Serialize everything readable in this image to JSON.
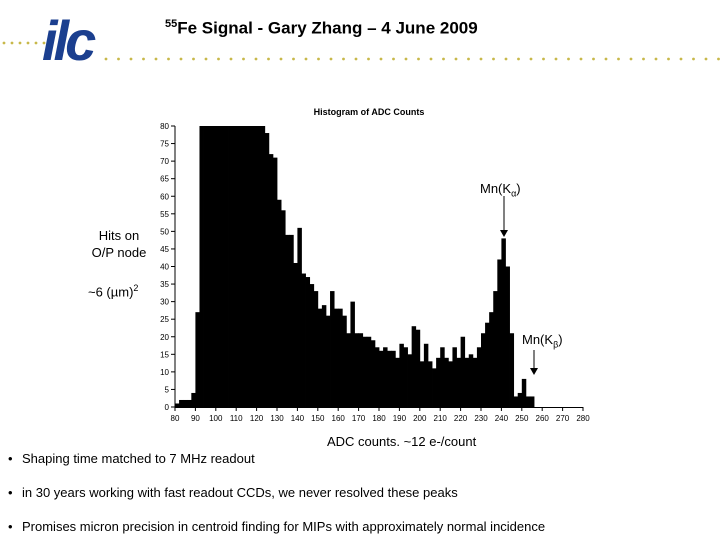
{
  "logo": {
    "text": "ilc",
    "color": "#1b3f8f",
    "dot_color": "#c8b84a"
  },
  "slide": {
    "title_sup": "55",
    "title_main": "Fe Signal - Gary Zhang – 4 June 2009"
  },
  "annotations": {
    "hits_line1": "Hits on",
    "hits_line2": "O/P node",
    "pixel_area": "~6 (µm)",
    "pixel_area_sup": "2",
    "mn_ka_prefix": "Mn(K",
    "mn_ka_sub": "α",
    "mn_ka_suffix": ")",
    "mn_kb_prefix": "Mn(K",
    "mn_kb_sub": "β",
    "mn_kb_suffix": ")",
    "xlabel": "ADC counts. ~12 e-/count"
  },
  "bullets": [
    {
      "marker": "•",
      "text": "Shaping time matched to 7 MHz readout"
    },
    {
      "marker": "•",
      "text": "in 30 years working with fast readout CCDs, we never resolved these peaks"
    },
    {
      "marker": "•",
      "text": "Promises micron precision in centroid finding for MIPs with approximately normal incidence"
    }
  ],
  "chart_data": {
    "type": "bar",
    "title": "Histogram of ADC Counts",
    "xlabel": "ADC counts. ~12 e-/count",
    "ylabel": "",
    "bin_width": 2,
    "xlim": [
      80,
      280
    ],
    "ylim": [
      0,
      80
    ],
    "xticks": [
      80,
      90,
      100,
      110,
      120,
      130,
      140,
      150,
      160,
      170,
      180,
      190,
      200,
      210,
      220,
      230,
      240,
      250,
      260,
      270,
      280
    ],
    "yticks": [
      0,
      5,
      10,
      15,
      20,
      25,
      30,
      35,
      40,
      45,
      50,
      55,
      60,
      65,
      70,
      75,
      80
    ],
    "bar_color": "#000000",
    "bins": [
      {
        "x": 80,
        "y": 1
      },
      {
        "x": 82,
        "y": 2
      },
      {
        "x": 84,
        "y": 2
      },
      {
        "x": 86,
        "y": 2
      },
      {
        "x": 88,
        "y": 4
      },
      {
        "x": 90,
        "y": 27
      },
      {
        "x": 92,
        "y": 80
      },
      {
        "x": 94,
        "y": 80
      },
      {
        "x": 96,
        "y": 80
      },
      {
        "x": 98,
        "y": 80
      },
      {
        "x": 100,
        "y": 80
      },
      {
        "x": 102,
        "y": 80
      },
      {
        "x": 104,
        "y": 80
      },
      {
        "x": 106,
        "y": 80
      },
      {
        "x": 108,
        "y": 80
      },
      {
        "x": 110,
        "y": 80
      },
      {
        "x": 112,
        "y": 80
      },
      {
        "x": 114,
        "y": 80
      },
      {
        "x": 116,
        "y": 80
      },
      {
        "x": 118,
        "y": 80
      },
      {
        "x": 120,
        "y": 80
      },
      {
        "x": 122,
        "y": 80
      },
      {
        "x": 124,
        "y": 78
      },
      {
        "x": 126,
        "y": 72
      },
      {
        "x": 128,
        "y": 71
      },
      {
        "x": 130,
        "y": 59
      },
      {
        "x": 132,
        "y": 56
      },
      {
        "x": 134,
        "y": 49
      },
      {
        "x": 136,
        "y": 49
      },
      {
        "x": 138,
        "y": 41
      },
      {
        "x": 140,
        "y": 51
      },
      {
        "x": 142,
        "y": 38
      },
      {
        "x": 144,
        "y": 37
      },
      {
        "x": 146,
        "y": 35
      },
      {
        "x": 148,
        "y": 33
      },
      {
        "x": 150,
        "y": 28
      },
      {
        "x": 152,
        "y": 29
      },
      {
        "x": 154,
        "y": 26
      },
      {
        "x": 156,
        "y": 33
      },
      {
        "x": 158,
        "y": 28
      },
      {
        "x": 160,
        "y": 28
      },
      {
        "x": 162,
        "y": 26
      },
      {
        "x": 164,
        "y": 21
      },
      {
        "x": 166,
        "y": 30
      },
      {
        "x": 168,
        "y": 21
      },
      {
        "x": 170,
        "y": 21
      },
      {
        "x": 172,
        "y": 20
      },
      {
        "x": 174,
        "y": 20
      },
      {
        "x": 176,
        "y": 19
      },
      {
        "x": 178,
        "y": 17
      },
      {
        "x": 180,
        "y": 16
      },
      {
        "x": 182,
        "y": 17
      },
      {
        "x": 184,
        "y": 16
      },
      {
        "x": 186,
        "y": 16
      },
      {
        "x": 188,
        "y": 14
      },
      {
        "x": 190,
        "y": 18
      },
      {
        "x": 192,
        "y": 17
      },
      {
        "x": 194,
        "y": 15
      },
      {
        "x": 196,
        "y": 23
      },
      {
        "x": 198,
        "y": 22
      },
      {
        "x": 200,
        "y": 13
      },
      {
        "x": 202,
        "y": 18
      },
      {
        "x": 204,
        "y": 13
      },
      {
        "x": 206,
        "y": 11
      },
      {
        "x": 208,
        "y": 14
      },
      {
        "x": 210,
        "y": 17
      },
      {
        "x": 212,
        "y": 14
      },
      {
        "x": 214,
        "y": 13
      },
      {
        "x": 216,
        "y": 17
      },
      {
        "x": 218,
        "y": 14
      },
      {
        "x": 220,
        "y": 20
      },
      {
        "x": 222,
        "y": 14
      },
      {
        "x": 224,
        "y": 15
      },
      {
        "x": 226,
        "y": 14
      },
      {
        "x": 228,
        "y": 17
      },
      {
        "x": 230,
        "y": 21
      },
      {
        "x": 232,
        "y": 24
      },
      {
        "x": 234,
        "y": 27
      },
      {
        "x": 236,
        "y": 33
      },
      {
        "x": 238,
        "y": 42
      },
      {
        "x": 240,
        "y": 48
      },
      {
        "x": 242,
        "y": 40
      },
      {
        "x": 244,
        "y": 21
      },
      {
        "x": 246,
        "y": 3
      },
      {
        "x": 248,
        "y": 4
      },
      {
        "x": 250,
        "y": 8
      },
      {
        "x": 252,
        "y": 3
      },
      {
        "x": 254,
        "y": 3
      }
    ]
  }
}
